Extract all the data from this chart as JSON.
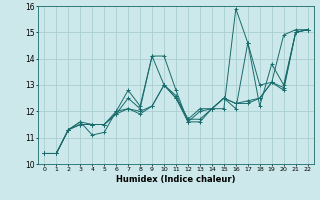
{
  "title": "",
  "xlabel": "Humidex (Indice chaleur)",
  "xlim": [
    -0.5,
    22.5
  ],
  "ylim": [
    10,
    16
  ],
  "yticks": [
    10,
    11,
    12,
    13,
    14,
    15,
    16
  ],
  "xticks": [
    0,
    1,
    2,
    3,
    4,
    5,
    6,
    7,
    8,
    9,
    10,
    11,
    12,
    13,
    14,
    15,
    16,
    17,
    18,
    19,
    20,
    21,
    22
  ],
  "bg_color": "#cce8ea",
  "grid_color": "#aacfd2",
  "line_color": "#1a6b6b",
  "lines": [
    {
      "x": [
        0,
        1,
        2,
        3,
        4,
        5,
        6,
        7,
        8,
        9,
        10,
        11,
        12,
        13,
        14,
        15,
        16,
        17,
        18,
        19,
        20,
        21,
        22
      ],
      "y": [
        10.4,
        10.4,
        11.3,
        11.6,
        11.1,
        11.2,
        12.0,
        12.8,
        12.2,
        14.1,
        14.1,
        12.8,
        11.6,
        11.6,
        12.1,
        12.1,
        15.9,
        14.6,
        13.0,
        13.1,
        14.9,
        15.1,
        15.1
      ]
    },
    {
      "x": [
        0,
        1,
        2,
        3,
        4,
        5,
        6,
        7,
        8,
        9,
        10,
        11,
        12,
        13,
        14,
        15,
        16,
        17,
        18,
        19,
        20,
        21,
        22
      ],
      "y": [
        10.4,
        10.4,
        11.3,
        11.6,
        11.5,
        11.5,
        11.9,
        12.5,
        12.1,
        14.1,
        13.0,
        12.6,
        11.7,
        12.1,
        12.1,
        12.5,
        12.1,
        14.6,
        12.2,
        13.8,
        13.0,
        15.0,
        15.1
      ]
    },
    {
      "x": [
        0,
        1,
        2,
        3,
        4,
        5,
        6,
        7,
        8,
        9,
        10,
        11,
        12,
        13,
        14,
        15,
        16,
        17,
        18,
        19,
        20,
        21,
        22
      ],
      "y": [
        10.4,
        10.4,
        11.3,
        11.5,
        11.5,
        11.5,
        11.9,
        12.1,
        11.9,
        12.2,
        13.0,
        12.5,
        11.7,
        11.7,
        12.1,
        12.5,
        12.3,
        12.4,
        12.5,
        13.1,
        12.9,
        15.0,
        15.1
      ]
    },
    {
      "x": [
        0,
        1,
        2,
        3,
        4,
        5,
        6,
        7,
        8,
        9,
        10,
        11,
        12,
        13,
        14,
        15,
        16,
        17,
        18,
        19,
        20,
        21,
        22
      ],
      "y": [
        10.4,
        10.4,
        11.3,
        11.5,
        11.5,
        11.5,
        12.0,
        12.1,
        12.0,
        12.2,
        13.0,
        12.5,
        11.6,
        12.0,
        12.1,
        12.5,
        12.3,
        12.3,
        12.5,
        13.1,
        12.8,
        15.0,
        15.1
      ]
    }
  ]
}
